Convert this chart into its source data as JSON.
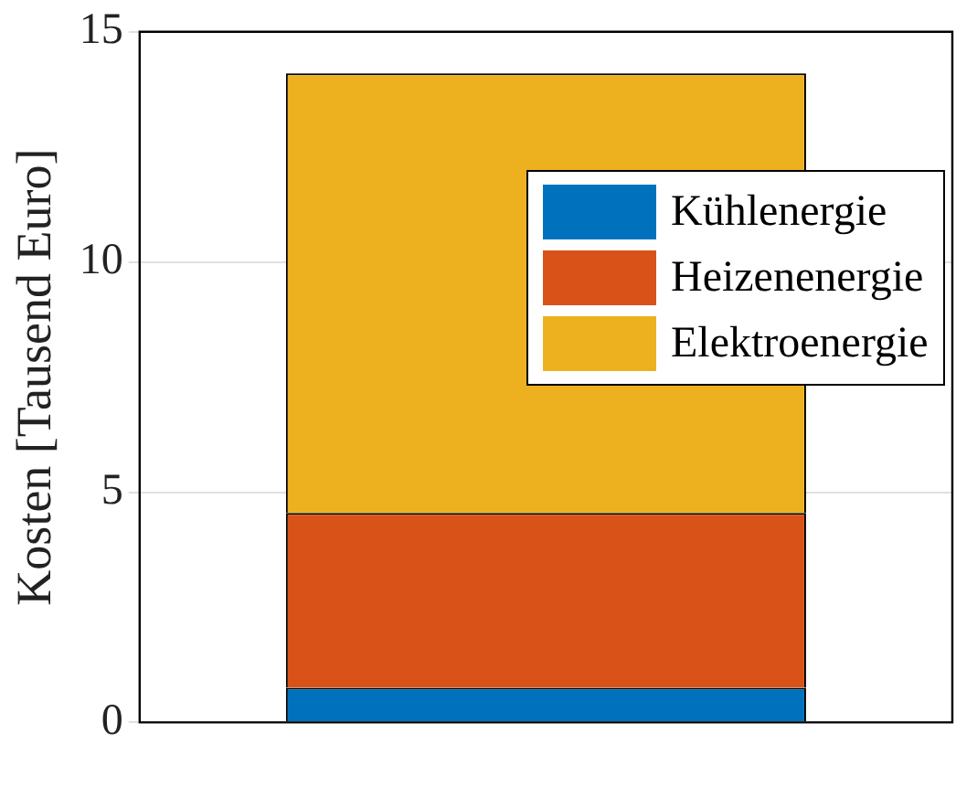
{
  "chart_data": {
    "type": "bar",
    "stacked": true,
    "ylabel": "Kosten [Tausend Euro]",
    "categories": [
      null
    ],
    "series": [
      {
        "name": "Kühlenergie",
        "color": "#0072bd",
        "values": [
          0.75
        ]
      },
      {
        "name": "Heizenenergie",
        "color": "#d95319",
        "values": [
          3.8
        ]
      },
      {
        "name": "Elektroenergie",
        "color": "#edb120",
        "values": [
          9.55
        ]
      }
    ],
    "ylim": [
      0,
      15
    ],
    "yticks": [
      0,
      5,
      10,
      15
    ],
    "grid": "y",
    "legend": "right"
  }
}
